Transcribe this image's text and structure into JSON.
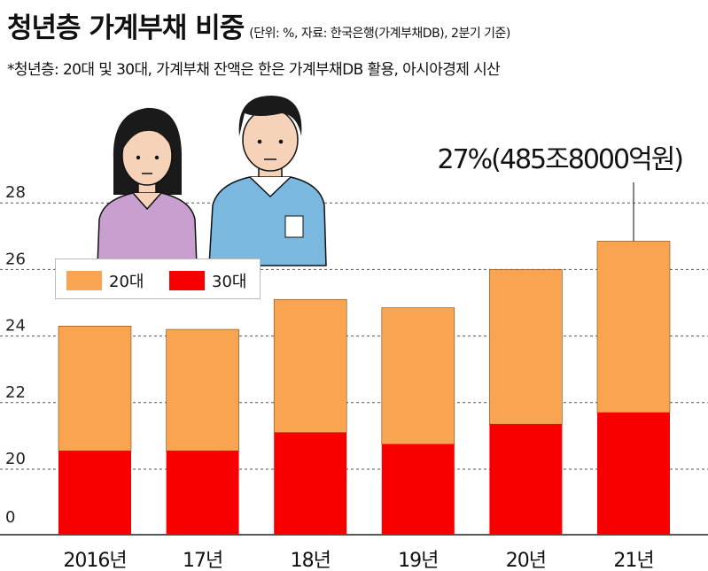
{
  "header": {
    "title": "청년층 가계부채 비중",
    "subtitle": "(단위: %, 자료: 한국은행(가계부채DB), 2분기 기준)",
    "note": "*청년층: 20대 및 30대, 가계부채 잔액은 한은 가계부채DB 활용, 아시아경제 시산"
  },
  "colors": {
    "series_20s": "#F9A451",
    "series_30s": "#F80000",
    "grid": "#555555"
  },
  "chart_data": {
    "type": "bar",
    "stacked": true,
    "categories": [
      "2016년",
      "17년",
      "18년",
      "19년",
      "20년",
      "21년"
    ],
    "series": [
      {
        "name": "30대",
        "values": [
          20.55,
          20.55,
          21.1,
          20.75,
          21.35,
          21.7
        ]
      },
      {
        "name": "20대",
        "values": [
          3.75,
          3.65,
          4.0,
          4.1,
          4.65,
          5.15
        ]
      }
    ],
    "totals": [
      24.3,
      24.2,
      25.1,
      24.85,
      26.0,
      26.85
    ],
    "y_ticks": [
      0,
      20,
      22,
      24,
      26,
      28
    ],
    "ylim": [
      0,
      29.5
    ],
    "axis_break": "0 to 20 compressed",
    "grid": true,
    "legend_position": "top-left",
    "annotation": {
      "text": "27%(485조8000억원)",
      "category": "21년"
    }
  }
}
